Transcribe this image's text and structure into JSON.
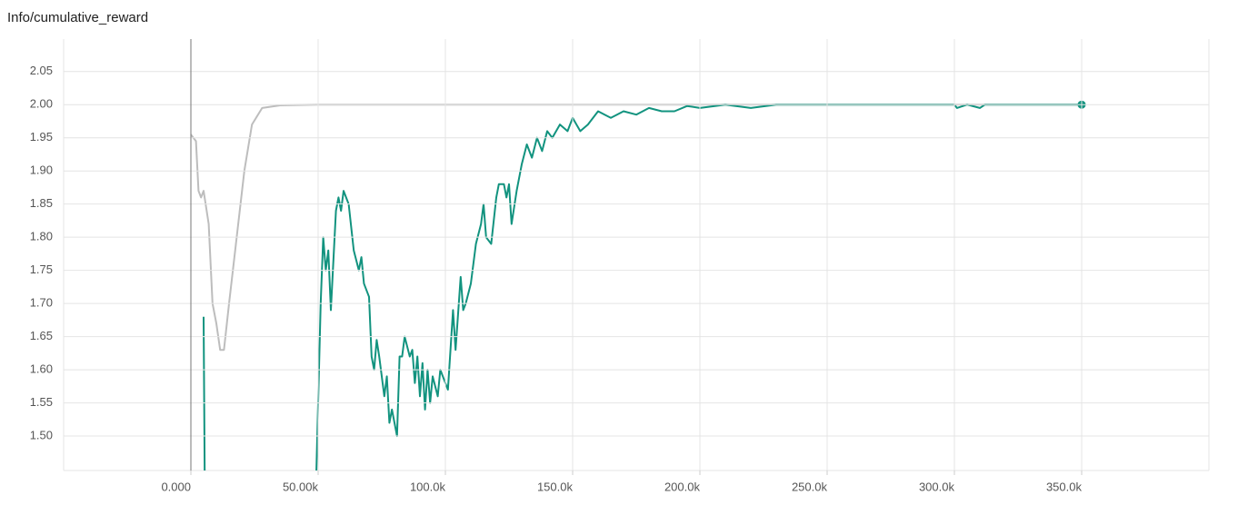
{
  "chart_data": {
    "type": "line",
    "title": "Info/cumulative_reward",
    "xlim": [
      -50000,
      400000
    ],
    "ylim": [
      1.448,
      2.099
    ],
    "xticks": [
      {
        "value": 0,
        "label": "0.000"
      },
      {
        "value": 50000,
        "label": "50.00k"
      },
      {
        "value": 100000,
        "label": "100.0k"
      },
      {
        "value": 150000,
        "label": "150.0k"
      },
      {
        "value": 200000,
        "label": "200.0k"
      },
      {
        "value": 250000,
        "label": "250.0k"
      },
      {
        "value": 300000,
        "label": "300.0k"
      },
      {
        "value": 350000,
        "label": "350.0k"
      }
    ],
    "yticks": [
      {
        "value": 1.5,
        "label": "1.50"
      },
      1.55,
      {
        "value": 1.6,
        "label": "1.60"
      },
      1.65,
      {
        "value": 1.7,
        "label": "1.70"
      },
      1.75,
      {
        "value": 1.8,
        "label": "1.80"
      },
      1.85,
      {
        "value": 1.9,
        "label": "1.90"
      },
      1.95,
      {
        "value": 2.0,
        "label": "2.00"
      },
      2.05
    ],
    "grid": true,
    "series": [
      {
        "color": "#bdbdbd",
        "x": [
          0,
          2000,
          3000,
          4000,
          5000,
          7000,
          8500,
          10000,
          11500,
          13000,
          15000,
          18000,
          21000,
          24000,
          28000,
          35000,
          50000,
          350000
        ],
        "values": [
          1.955,
          1.945,
          1.87,
          1.86,
          1.87,
          1.82,
          1.7,
          1.67,
          1.63,
          1.63,
          1.7,
          1.8,
          1.9,
          1.97,
          1.995,
          1.999,
          2.0,
          2.0
        ]
      },
      {
        "color": "#12937f",
        "x": [
          5000,
          5500,
          20000,
          49000,
          51000,
          52000,
          53000,
          54000,
          55000,
          57000,
          58000,
          59000,
          60000,
          62000,
          64000,
          66000,
          67000,
          68000,
          70000,
          71000,
          72000,
          73000,
          74000,
          76000,
          77000,
          78000,
          79000,
          81000,
          82000,
          83000,
          84000,
          86000,
          87000,
          88000,
          89000,
          90000,
          91000,
          92000,
          93000,
          94000,
          95000,
          97000,
          98000,
          100000,
          101000,
          103000,
          104000,
          106000,
          107000,
          108000,
          110000,
          112000,
          114000,
          115000,
          116000,
          118000,
          120000,
          121000,
          123000,
          124000,
          125000,
          126000,
          128000,
          130000,
          132000,
          134000,
          136000,
          138000,
          140000,
          142000,
          145000,
          148000,
          150000,
          153000,
          156000,
          160000,
          165000,
          170000,
          175000,
          180000,
          185000,
          190000,
          195000,
          200000,
          210000,
          220000,
          230000,
          240000,
          300000,
          301000,
          305000,
          310000,
          312000,
          350000
        ],
        "values": [
          1.68,
          1.4,
          null,
          1.4,
          1.7,
          1.8,
          1.75,
          1.78,
          1.69,
          1.84,
          1.86,
          1.84,
          1.87,
          1.85,
          1.78,
          1.75,
          1.77,
          1.73,
          1.71,
          1.62,
          1.6,
          1.645,
          1.62,
          1.56,
          1.59,
          1.52,
          1.54,
          1.5,
          1.62,
          1.62,
          1.65,
          1.62,
          1.63,
          1.58,
          1.62,
          1.56,
          1.61,
          1.54,
          1.6,
          1.55,
          1.59,
          1.56,
          1.6,
          1.58,
          1.57,
          1.69,
          1.63,
          1.74,
          1.69,
          1.7,
          1.73,
          1.79,
          1.82,
          1.85,
          1.8,
          1.79,
          1.86,
          1.88,
          1.88,
          1.86,
          1.88,
          1.82,
          1.87,
          1.91,
          1.94,
          1.92,
          1.95,
          1.93,
          1.96,
          1.95,
          1.97,
          1.96,
          1.98,
          1.96,
          1.97,
          1.99,
          1.98,
          1.99,
          1.985,
          1.995,
          1.99,
          1.99,
          1.998,
          1.995,
          2.0,
          1.995,
          2.0,
          2.0,
          2.0,
          1.995,
          2.0,
          1.995,
          2.0,
          2.0
        ]
      }
    ]
  }
}
